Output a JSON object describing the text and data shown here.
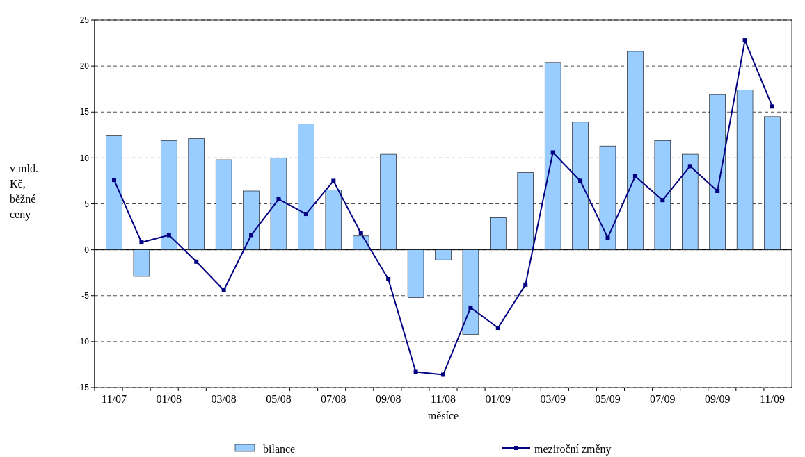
{
  "chart_data": {
    "type": "bar",
    "xlabel": "měsíce",
    "ylabel": "v mld. Kč, běžné ceny",
    "categories": [
      "11/07",
      null,
      "01/08",
      null,
      "03/08",
      null,
      "05/08",
      null,
      "07/08",
      null,
      "09/08",
      null,
      "11/08",
      null,
      "01/09",
      null,
      "03/09",
      null,
      "05/09",
      null,
      "07/09",
      null,
      "09/09",
      null,
      "11/09"
    ],
    "series": [
      {
        "name": "bilance",
        "color": "#99ccff",
        "values": [
          12.4,
          -2.9,
          11.9,
          12.1,
          9.8,
          6.4,
          10.0,
          13.7,
          6.5,
          1.5,
          10.4,
          -5.2,
          -1.1,
          -9.2,
          3.5,
          8.4,
          20.4,
          13.9,
          11.3,
          21.6,
          11.9,
          10.4,
          16.9,
          17.4,
          14.5
        ]
      },
      {
        "name": "meziroční změny",
        "type": "line",
        "color": "#000080",
        "marker": "square",
        "line_style": "solid",
        "values": [
          7.6,
          0.8,
          1.6,
          -1.3,
          -4.4,
          1.6,
          5.5,
          3.9,
          7.5,
          1.8,
          -3.2,
          -13.3,
          -13.6,
          -6.3,
          -8.5,
          -3.8,
          10.6,
          7.5,
          1.3,
          8.0,
          5.4,
          9.1,
          6.4,
          22.8,
          15.6
        ]
      }
    ],
    "ylim": [
      -15,
      25
    ],
    "yticks": [
      -15,
      -10,
      -5,
      0,
      5,
      10,
      15,
      20,
      25
    ],
    "grid": "y",
    "legend": "bottom"
  }
}
